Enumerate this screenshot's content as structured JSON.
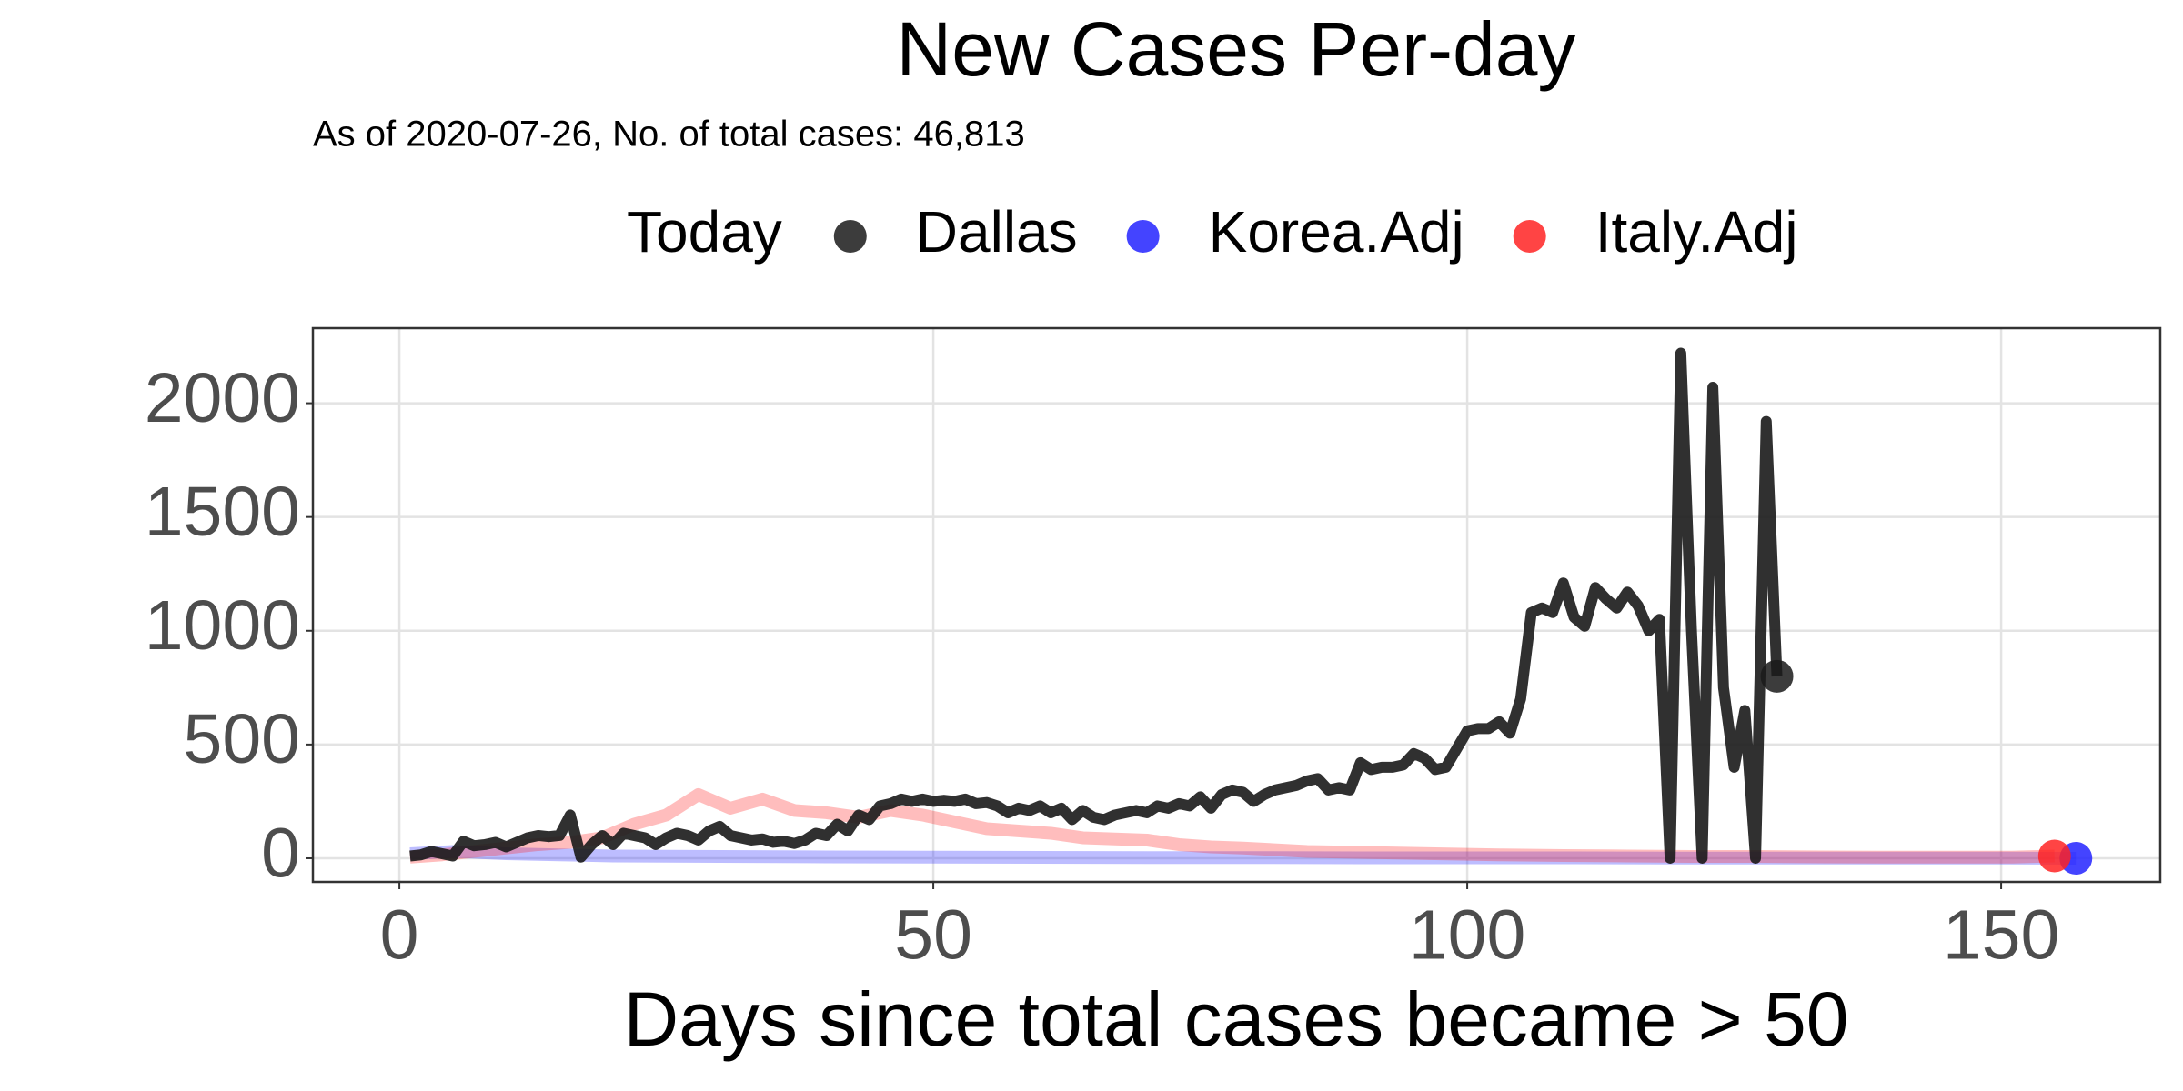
{
  "chart_data": {
    "type": "line",
    "title": "New Cases Per-day",
    "subtitle": "As of 2020-07-26, No. of total cases: 46,813",
    "x_label": "Days since total cases became > 50",
    "legend_title": "Today",
    "xlim": [
      -8.1,
      164.9
    ],
    "xticks": [
      0,
      50,
      100,
      150
    ],
    "ylim": [
      -104,
      2330
    ],
    "yticks": [
      0,
      500,
      1000,
      1500,
      2000
    ],
    "grid": true,
    "series": [
      {
        "name": "Dallas",
        "color": "#1a1a1a",
        "x": [
          1,
          2,
          3,
          4,
          5,
          6,
          7,
          8,
          9,
          10,
          11,
          12,
          13,
          14,
          15,
          16,
          17,
          18,
          19,
          20,
          21,
          22,
          23,
          24,
          25,
          26,
          27,
          28,
          29,
          30,
          31,
          32,
          33,
          34,
          35,
          36,
          37,
          38,
          39,
          40,
          41,
          42,
          43,
          44,
          45,
          46,
          47,
          48,
          49,
          50,
          51,
          52,
          53,
          54,
          55,
          56,
          57,
          58,
          59,
          60,
          61,
          62,
          63,
          64,
          65,
          66,
          67,
          68,
          69,
          70,
          71,
          72,
          73,
          74,
          75,
          76,
          77,
          78,
          79,
          80,
          81,
          82,
          83,
          84,
          85,
          86,
          87,
          88,
          89,
          90,
          91,
          92,
          93,
          94,
          95,
          96,
          97,
          98,
          99,
          100,
          101,
          102,
          103,
          104,
          105,
          106,
          107,
          108,
          109,
          110,
          111,
          112,
          113,
          114,
          115,
          116,
          117,
          118,
          119,
          120,
          121,
          122,
          123,
          124,
          125,
          126,
          127,
          128,
          129
        ],
        "values": [
          10,
          15,
          30,
          20,
          10,
          75,
          55,
          60,
          70,
          50,
          70,
          90,
          100,
          95,
          100,
          190,
          5,
          60,
          100,
          60,
          110,
          100,
          90,
          60,
          90,
          110,
          100,
          80,
          120,
          140,
          100,
          90,
          80,
          85,
          70,
          75,
          65,
          80,
          110,
          100,
          150,
          120,
          190,
          170,
          230,
          240,
          260,
          250,
          260,
          250,
          255,
          250,
          260,
          240,
          245,
          230,
          200,
          220,
          210,
          230,
          200,
          220,
          170,
          210,
          180,
          170,
          190,
          200,
          210,
          200,
          230,
          220,
          240,
          230,
          270,
          220,
          280,
          300,
          290,
          250,
          280,
          300,
          310,
          320,
          340,
          350,
          300,
          310,
          300,
          420,
          390,
          400,
          400,
          410,
          460,
          440,
          390,
          400,
          480,
          560,
          570,
          570,
          600,
          550,
          700,
          1080,
          1100,
          1080,
          1210,
          1060,
          1020,
          1190,
          1140,
          1100,
          1170,
          1110,
          1000,
          1050,
          0,
          2220,
          1000,
          0,
          2070,
          750,
          400,
          650,
          0,
          1920,
          800
        ],
        "today_x": 129,
        "today_value": 800
      },
      {
        "name": "Korea.Adj",
        "color": "#2323ff",
        "x": [
          1,
          5,
          10,
          15,
          20,
          30,
          40,
          50,
          60,
          70,
          80,
          90,
          100,
          110,
          120,
          130,
          140,
          150,
          157
        ],
        "values": [
          20,
          30,
          20,
          15,
          10,
          8,
          6,
          5,
          4,
          3,
          3,
          2,
          2,
          2,
          1,
          1,
          1,
          1,
          0
        ],
        "today_x": 157,
        "today_value": 0
      },
      {
        "name": "Italy.Adj",
        "color": "#ff2323",
        "x": [
          1,
          4,
          7,
          10,
          13,
          16,
          19,
          22,
          25,
          28,
          31,
          34,
          37,
          40,
          43,
          46,
          49,
          52,
          55,
          58,
          61,
          64,
          67,
          70,
          73,
          76,
          79,
          85,
          91,
          97,
          103,
          109,
          115,
          121,
          127,
          133,
          139,
          145,
          151,
          155
        ],
        "values": [
          5,
          15,
          30,
          45,
          60,
          70,
          90,
          150,
          190,
          280,
          220,
          260,
          210,
          200,
          180,
          210,
          190,
          160,
          130,
          120,
          110,
          90,
          85,
          80,
          60,
          50,
          45,
          30,
          25,
          20,
          15,
          12,
          10,
          8,
          8,
          6,
          5,
          5,
          5,
          10
        ],
        "today_x": 155,
        "today_value": 10
      }
    ]
  }
}
